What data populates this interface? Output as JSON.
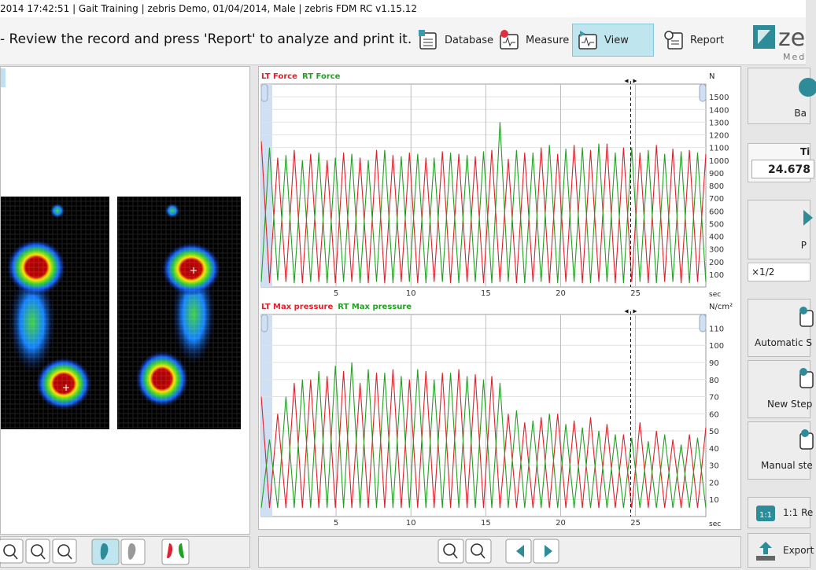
{
  "window_title": "2014 17:42:51 | Gait Training | zebris Demo, 01/04/2014, Male | zebris FDM RC v1.15.12",
  "toolbar": {
    "instruction": "- Review the record and press 'Report' to analyze and print it.",
    "buttons": [
      "Database",
      "Measure",
      "View",
      "Report"
    ],
    "active": "View",
    "logo": "ze",
    "logo_sub": "Med"
  },
  "right_panel": {
    "top_button": "Ba",
    "time_label": "Ti",
    "time_value": 24.678,
    "play_label": "P",
    "speed": "×1/2",
    "buttons": [
      "Automatic S",
      "New Step",
      "Manual ste"
    ],
    "bottom_buttons": [
      "1:1 Re",
      "Export"
    ]
  },
  "chart_data": [
    {
      "type": "line",
      "y_label": "N",
      "x_label": "sec",
      "x": [
        0,
        0.55,
        1.1,
        1.65,
        2.2,
        2.75,
        3.3,
        3.85,
        4.4,
        4.95,
        5.5,
        6.05,
        6.6,
        7.15,
        7.7,
        8.25,
        8.8,
        9.35,
        9.9,
        10.45,
        11,
        11.55,
        12.1,
        12.65,
        13.2,
        13.75,
        14.3,
        14.85,
        15.4,
        15.95,
        16.5,
        17.05,
        17.6,
        18.15,
        18.7,
        19.25,
        19.8,
        20.35,
        20.9,
        21.45,
        22,
        22.55,
        23.1,
        23.65,
        24.2,
        24.75,
        25.3,
        25.85,
        26.4,
        26.95,
        27.5,
        28.05,
        28.6,
        29.15,
        29.7
      ],
      "series": [
        {
          "name": "LT Force",
          "color": "#e0202a",
          "values": [
            1150,
            30,
            1020,
            40,
            1080,
            30,
            1050,
            40,
            1000,
            30,
            1060,
            40,
            1020,
            30,
            1080,
            30,
            1040,
            40,
            1060,
            30,
            1020,
            40,
            1070,
            30,
            1050,
            40,
            1030,
            30,
            1080,
            40,
            1010,
            30,
            1060,
            40,
            1100,
            30,
            1050,
            40,
            1120,
            30,
            1080,
            40,
            1130,
            30,
            1100,
            40,
            1060,
            30,
            1120,
            40,
            1090,
            30,
            1080,
            40,
            1050
          ]
        },
        {
          "name": "RT Force",
          "color": "#22a022",
          "values": [
            40,
            1100,
            50,
            1040,
            30,
            1000,
            40,
            1060,
            30,
            1020,
            40,
            1050,
            30,
            1000,
            40,
            1080,
            30,
            1030,
            40,
            1050,
            30,
            1020,
            40,
            1060,
            30,
            1040,
            40,
            1070,
            30,
            1300,
            40,
            1080,
            30,
            1060,
            40,
            1120,
            30,
            1090,
            40,
            1100,
            30,
            1130,
            40,
            1060,
            30,
            1100,
            40,
            1080,
            30,
            1050,
            40,
            1070,
            30,
            1060,
            40
          ]
        }
      ],
      "xlim": [
        0,
        29.7
      ],
      "xticks": [
        5,
        10,
        15,
        20,
        25
      ],
      "ylim": [
        0,
        1600
      ],
      "yticks": [
        100,
        200,
        300,
        400,
        500,
        600,
        700,
        800,
        900,
        1000,
        1100,
        1200,
        1300,
        1400,
        1500
      ],
      "grid": true
    },
    {
      "type": "line",
      "y_label": "N/cm²",
      "x_label": "sec",
      "x": [
        0,
        0.55,
        1.1,
        1.65,
        2.2,
        2.75,
        3.3,
        3.85,
        4.4,
        4.95,
        5.5,
        6.05,
        6.6,
        7.15,
        7.7,
        8.25,
        8.8,
        9.35,
        9.9,
        10.45,
        11,
        11.55,
        12.1,
        12.65,
        13.2,
        13.75,
        14.3,
        14.85,
        15.4,
        15.95,
        16.5,
        17.05,
        17.6,
        18.15,
        18.7,
        19.25,
        19.8,
        20.35,
        20.9,
        21.45,
        22,
        22.55,
        23.1,
        23.65,
        24.2,
        24.75,
        25.3,
        25.85,
        26.4,
        26.95,
        27.5,
        28.05,
        28.6,
        29.15,
        29.7
      ],
      "series": [
        {
          "name": "LT Max pressure",
          "color": "#e0202a",
          "values": [
            70,
            5,
            60,
            5,
            78,
            5,
            80,
            5,
            82,
            5,
            85,
            5,
            78,
            5,
            84,
            5,
            86,
            5,
            80,
            5,
            85,
            5,
            84,
            5,
            86,
            5,
            83,
            5,
            82,
            5,
            60,
            5,
            55,
            5,
            58,
            5,
            60,
            5,
            56,
            5,
            58,
            5,
            54,
            5,
            48,
            5,
            55,
            5,
            50,
            5,
            45,
            5,
            48,
            5,
            52
          ]
        },
        {
          "name": "RT Max pressure",
          "color": "#22a022",
          "values": [
            5,
            45,
            5,
            70,
            5,
            80,
            5,
            85,
            5,
            88,
            5,
            90,
            5,
            86,
            5,
            84,
            5,
            82,
            5,
            86,
            5,
            80,
            5,
            84,
            5,
            82,
            5,
            80,
            5,
            78,
            5,
            62,
            5,
            56,
            5,
            60,
            5,
            54,
            5,
            52,
            5,
            50,
            5,
            48,
            5,
            46,
            5,
            44,
            5,
            48,
            5,
            42,
            5,
            46,
            5
          ]
        }
      ],
      "xlim": [
        0,
        29.7
      ],
      "xticks": [
        5,
        10,
        15,
        20,
        25
      ],
      "ylim": [
        0,
        118
      ],
      "yticks": [
        10,
        20,
        30,
        40,
        50,
        60,
        70,
        80,
        90,
        100,
        110
      ],
      "grid": true
    }
  ]
}
